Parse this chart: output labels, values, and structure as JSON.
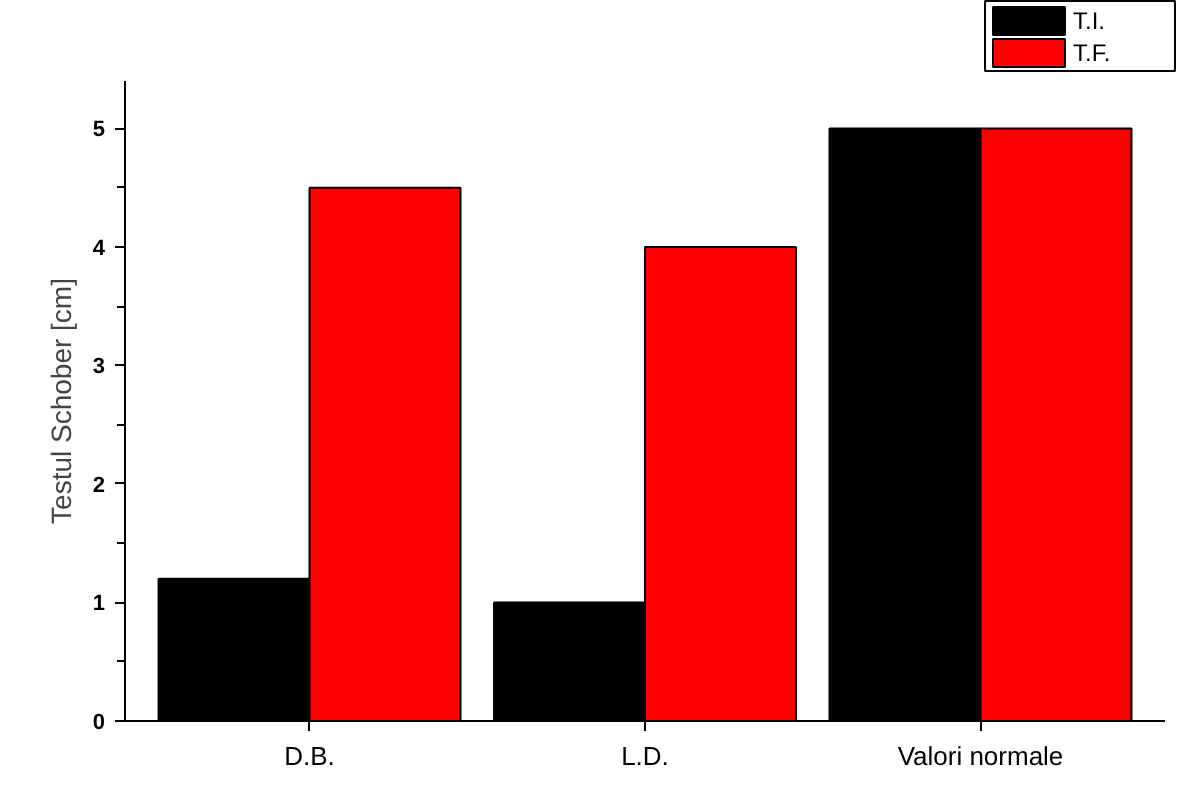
{
  "chart_data": {
    "type": "bar",
    "ylabel": "Testul Schober [cm]",
    "categories": [
      "D.B.",
      "L.D.",
      "Valori normale"
    ],
    "series": [
      {
        "name": "T.I.",
        "color": "#000000",
        "values": [
          1.2,
          1.0,
          5.0
        ]
      },
      {
        "name": "T.F.",
        "color": "#ff0000",
        "values": [
          4.5,
          4.0,
          5.0
        ]
      }
    ],
    "ylim": [
      0,
      5.4
    ],
    "yticks": [
      0,
      1,
      2,
      3,
      4,
      5
    ],
    "grid": false,
    "legend": "top right"
  }
}
